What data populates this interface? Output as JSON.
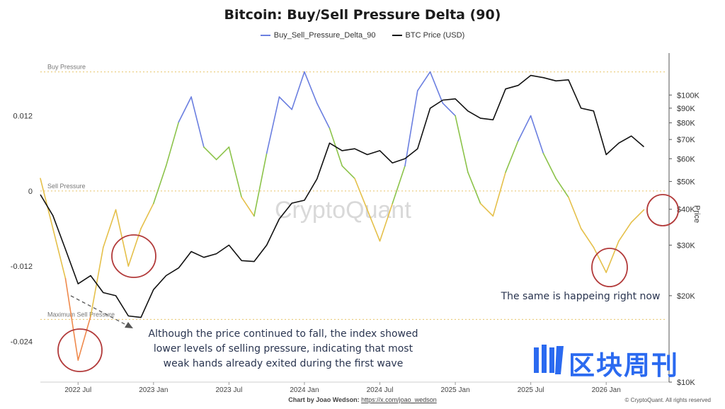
{
  "title": "Bitcoin: Buy/Sell Pressure Delta (90)",
  "legend": [
    {
      "label": "Buy_Sell_Pressure_Delta_90",
      "color": "#6b7fe0"
    },
    {
      "label": "BTC Price (USD)",
      "color": "#111111"
    }
  ],
  "watermark": "CryptoQuant",
  "footer": {
    "credit": "Chart by Joao Wedson:",
    "link": "https://x.com/joao_wedson",
    "rights": "© CryptoQuant. All rights reserved"
  },
  "annotations": {
    "main_lines": [
      "Although the price continued to fall, the index showed",
      "lower levels of selling pressure, indicating that most",
      "weak hands already exited during the first wave"
    ],
    "now": "The same is happeing right now"
  },
  "brand": {
    "name": "区块周刊"
  },
  "colors": {
    "buy_zone": "#6b7fe0",
    "neutral_zone": "#8cc34a",
    "sell_zone": "#e5c04a",
    "max_sell_zone": "#ef8a4d",
    "price_line": "#111111",
    "reference_line": "#e8c46a",
    "circle": "#b23a3a",
    "annotation_text": "#2a3550"
  },
  "chart_data": {
    "type": "line",
    "x_tick_labels": [
      "2022 Jul",
      "2023 Jan",
      "2023 Jul",
      "2024 Jan",
      "2024 Jul",
      "2025 Jan",
      "2025 Jul",
      "2026 Jan"
    ],
    "x_range": [
      "2022-04",
      "2026-06"
    ],
    "left_axis": {
      "ticks": [
        0.012,
        0,
        -0.012,
        -0.024
      ],
      "tick_labels": [
        "0.012",
        "0",
        "-0.012",
        "-0.024"
      ],
      "ylim": [
        -0.0305,
        0.022
      ]
    },
    "right_axis": {
      "title": "Price",
      "scale": "log",
      "ticks": [
        100000,
        90000,
        80000,
        70000,
        60000,
        50000,
        40000,
        30000,
        20000,
        10000
      ],
      "tick_labels": [
        "$100K",
        "$90K",
        "$80K",
        "$70K",
        "$60K",
        "$50K",
        "$40K",
        "$30K",
        "$20K",
        "$10K"
      ],
      "ylim": [
        10000,
        140000
      ]
    },
    "reference_lines": [
      {
        "label": "Buy Pressure",
        "value": 0.019
      },
      {
        "label": "Sell Pressure",
        "value": 0.0
      },
      {
        "label": "Maximum Sell Pressure",
        "value": -0.0205
      }
    ],
    "series": [
      {
        "name": "Buy_Sell_Pressure_Delta_90",
        "axis": "left",
        "x": [
          "2022-04",
          "2022-05",
          "2022-06",
          "2022-07",
          "2022-08",
          "2022-09",
          "2022-10",
          "2022-11",
          "2022-12",
          "2023-01",
          "2023-02",
          "2023-03",
          "2023-04",
          "2023-05",
          "2023-06",
          "2023-07",
          "2023-08",
          "2023-09",
          "2023-10",
          "2023-11",
          "2023-12",
          "2024-01",
          "2024-02",
          "2024-03",
          "2024-04",
          "2024-05",
          "2024-06",
          "2024-07",
          "2024-08",
          "2024-09",
          "2024-10",
          "2024-11",
          "2024-12",
          "2025-01",
          "2025-02",
          "2025-03",
          "2025-04",
          "2025-05",
          "2025-06",
          "2025-07",
          "2025-08",
          "2025-09",
          "2025-10",
          "2025-11",
          "2025-12",
          "2026-01",
          "2026-02",
          "2026-03",
          "2026-04"
        ],
        "values": [
          0.002,
          -0.006,
          -0.014,
          -0.027,
          -0.02,
          -0.009,
          -0.003,
          -0.012,
          -0.006,
          -0.002,
          0.004,
          0.011,
          0.015,
          0.007,
          0.005,
          0.007,
          -0.001,
          -0.004,
          0.006,
          0.015,
          0.013,
          0.019,
          0.014,
          0.01,
          0.004,
          0.002,
          -0.003,
          -0.008,
          -0.002,
          0.004,
          0.016,
          0.019,
          0.014,
          0.012,
          0.003,
          -0.002,
          -0.004,
          0.003,
          0.008,
          0.012,
          0.006,
          0.002,
          -0.001,
          -0.006,
          -0.009,
          -0.013,
          -0.008,
          -0.005,
          -0.003
        ]
      },
      {
        "name": "BTC Price (USD)",
        "axis": "right",
        "x": [
          "2022-04",
          "2022-05",
          "2022-06",
          "2022-07",
          "2022-08",
          "2022-09",
          "2022-10",
          "2022-11",
          "2022-12",
          "2023-01",
          "2023-02",
          "2023-03",
          "2023-04",
          "2023-05",
          "2023-06",
          "2023-07",
          "2023-08",
          "2023-09",
          "2023-10",
          "2023-11",
          "2023-12",
          "2024-01",
          "2024-02",
          "2024-03",
          "2024-04",
          "2024-05",
          "2024-06",
          "2024-07",
          "2024-08",
          "2024-09",
          "2024-10",
          "2024-11",
          "2024-12",
          "2025-01",
          "2025-02",
          "2025-03",
          "2025-04",
          "2025-05",
          "2025-06",
          "2025-07",
          "2025-08",
          "2025-09",
          "2025-10",
          "2025-11",
          "2025-12",
          "2026-01",
          "2026-02",
          "2026-03",
          "2026-04"
        ],
        "values": [
          45000,
          38000,
          29000,
          22000,
          23500,
          20500,
          20000,
          17000,
          16800,
          21000,
          23500,
          25000,
          28500,
          27200,
          28000,
          30000,
          26500,
          26300,
          30000,
          37000,
          42000,
          43000,
          51000,
          68000,
          64000,
          65000,
          62000,
          64000,
          58000,
          60000,
          65000,
          90000,
          96000,
          97000,
          88000,
          83000,
          82000,
          105000,
          108000,
          117000,
          115000,
          112000,
          113000,
          90000,
          88000,
          62000,
          68000,
          72000,
          66000
        ]
      }
    ]
  }
}
